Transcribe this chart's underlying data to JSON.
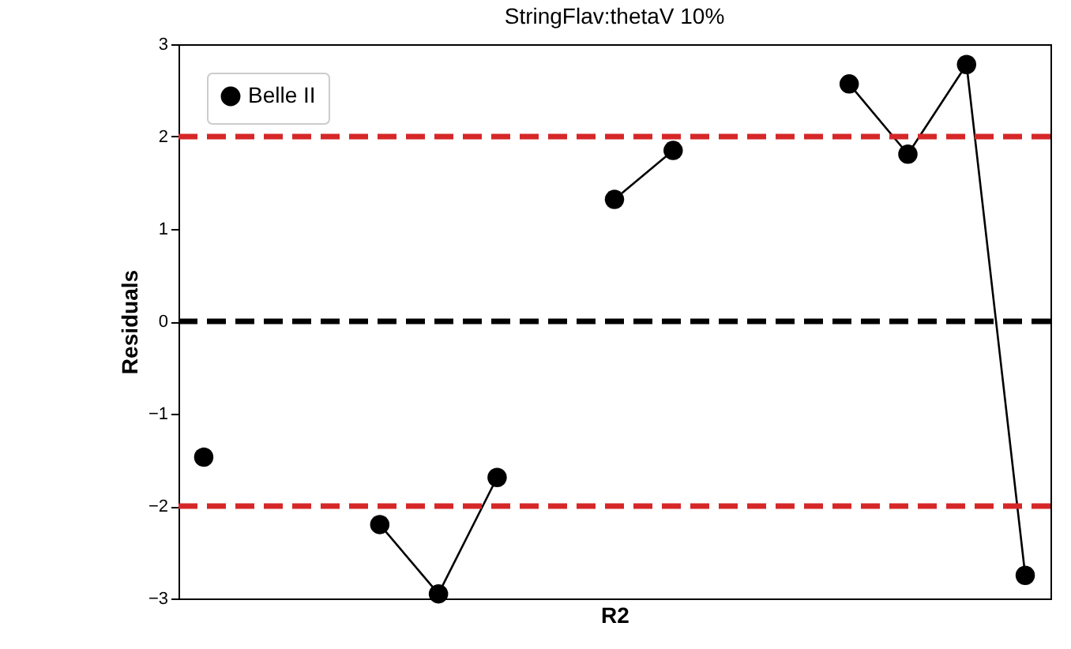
{
  "chart_data": {
    "type": "line",
    "title": "StringFlav:thetaV 10%",
    "xlabel": "R2",
    "ylabel": "Residuals",
    "categories": [
      null,
      null,
      null,
      null,
      null,
      null,
      null,
      null,
      null,
      null,
      null,
      null,
      null,
      null,
      null
    ],
    "series": [
      {
        "name": "Belle II",
        "color": "#000000",
        "values": [
          -1.47,
          null,
          null,
          -2.2,
          -2.95,
          -1.69,
          null,
          1.32,
          1.85,
          null,
          null,
          2.57,
          1.81,
          2.78,
          -2.75
        ]
      }
    ],
    "ylim": [
      -3,
      3
    ],
    "yticks": [
      {
        "value": -3,
        "label": "−3"
      },
      {
        "value": -2,
        "label": "−2"
      },
      {
        "value": -1,
        "label": "−1"
      },
      0,
      1,
      2,
      3
    ],
    "tick_labels": "y",
    "grid": false,
    "legend": "top left",
    "marker": "circle",
    "line_style": "solid",
    "ref_lines": [
      {
        "axis": "y",
        "value": 2,
        "label": null,
        "color": "#d62728",
        "line_style": "dashed"
      },
      {
        "axis": "y",
        "value": 0,
        "label": null,
        "color": "#000000",
        "line_style": "dashed"
      },
      {
        "axis": "y",
        "value": -2,
        "label": null,
        "color": "#d62728",
        "line_style": "dashed"
      }
    ]
  }
}
